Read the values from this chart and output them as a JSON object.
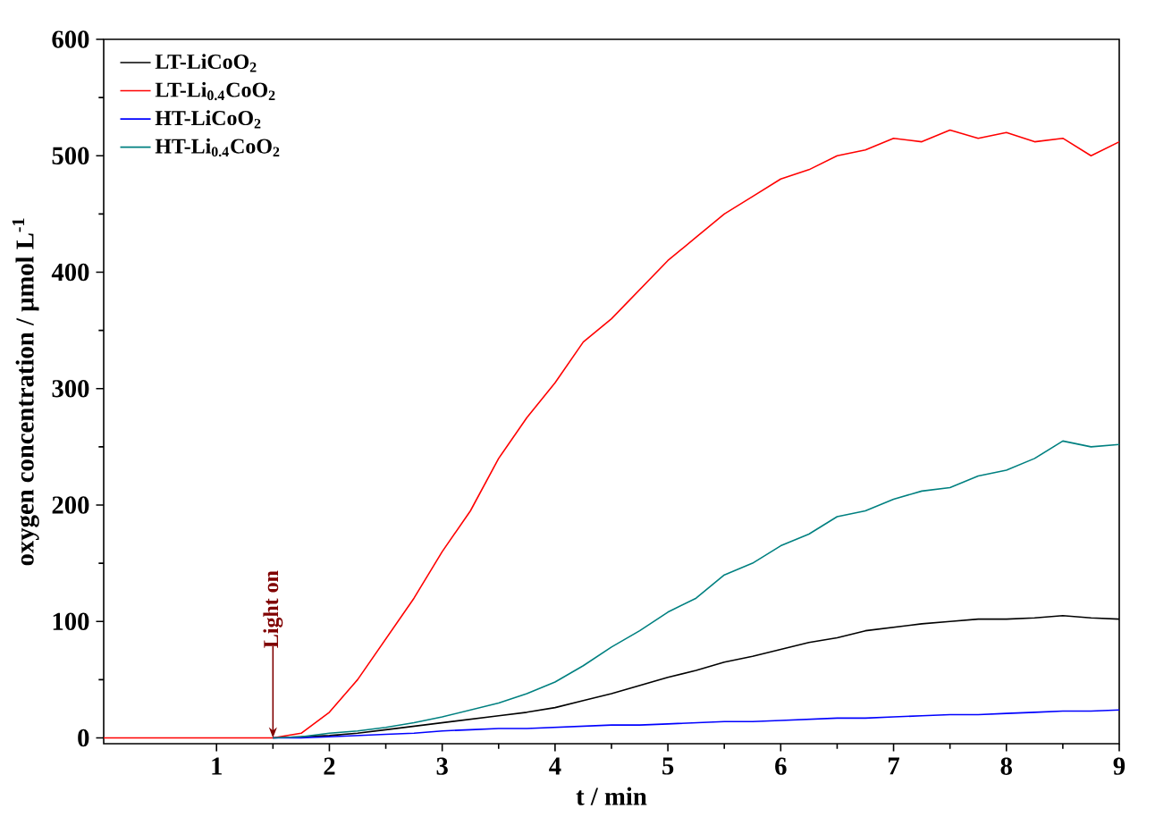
{
  "chart_data": {
    "type": "line",
    "xlabel": "t / min",
    "ylabel": "oxygen concentration / μmol L$^{-1}$",
    "x": [
      0,
      0.5,
      1,
      1.5,
      1.75,
      2,
      2.25,
      2.5,
      2.75,
      3,
      3.25,
      3.5,
      3.75,
      4,
      4.25,
      4.5,
      4.75,
      5,
      5.25,
      5.5,
      5.75,
      6,
      6.25,
      6.5,
      6.75,
      7,
      7.25,
      7.5,
      7.75,
      8,
      8.25,
      8.5,
      8.75,
      9
    ],
    "series": [
      {
        "name": "LT-LiCoO$_{2}$",
        "color": "#000000",
        "values": [
          null,
          null,
          null,
          0,
          1,
          2,
          4,
          7,
          10,
          13,
          16,
          19,
          22,
          26,
          32,
          38,
          45,
          52,
          58,
          65,
          70,
          76,
          82,
          86,
          92,
          95,
          98,
          100,
          102,
          102,
          103,
          105,
          103,
          102
        ]
      },
      {
        "name": "LT-Li$_{0.4}$CoO$_{2}$",
        "color": "#ff0000",
        "values": [
          0,
          0,
          0,
          0,
          4,
          22,
          50,
          85,
          120,
          160,
          195,
          240,
          275,
          305,
          340,
          360,
          385,
          410,
          430,
          450,
          465,
          480,
          488,
          500,
          505,
          515,
          512,
          522,
          515,
          520,
          512,
          515,
          500,
          512
        ]
      },
      {
        "name": "HT-LiCoO$_{2}$",
        "color": "#0000ff",
        "values": [
          null,
          null,
          null,
          0,
          0,
          1,
          2,
          3,
          4,
          6,
          7,
          8,
          8,
          9,
          10,
          11,
          11,
          12,
          13,
          14,
          14,
          15,
          16,
          17,
          17,
          18,
          19,
          20,
          20,
          21,
          22,
          23,
          23,
          24
        ]
      },
      {
        "name": "HT-Li$_{0.4}$CoO$_{2}$",
        "color": "#008080",
        "values": [
          null,
          null,
          null,
          0,
          1,
          4,
          6,
          9,
          13,
          18,
          24,
          30,
          38,
          48,
          62,
          78,
          92,
          108,
          120,
          140,
          150,
          165,
          175,
          190,
          195,
          205,
          212,
          215,
          225,
          230,
          240,
          255,
          250,
          252
        ]
      }
    ],
    "xlim": [
      0,
      9
    ],
    "ylim": [
      -5,
      600
    ],
    "xticks": [
      1,
      2,
      3,
      4,
      5,
      6,
      7,
      8,
      9
    ],
    "yticks": [
      0,
      100,
      200,
      300,
      400,
      500,
      600
    ],
    "legend": "top left",
    "grid": false,
    "marker": "none",
    "line_style": "solid",
    "annotations": [
      {
        "text": "Light on",
        "x": 1.5,
        "y": 0
      }
    ]
  }
}
